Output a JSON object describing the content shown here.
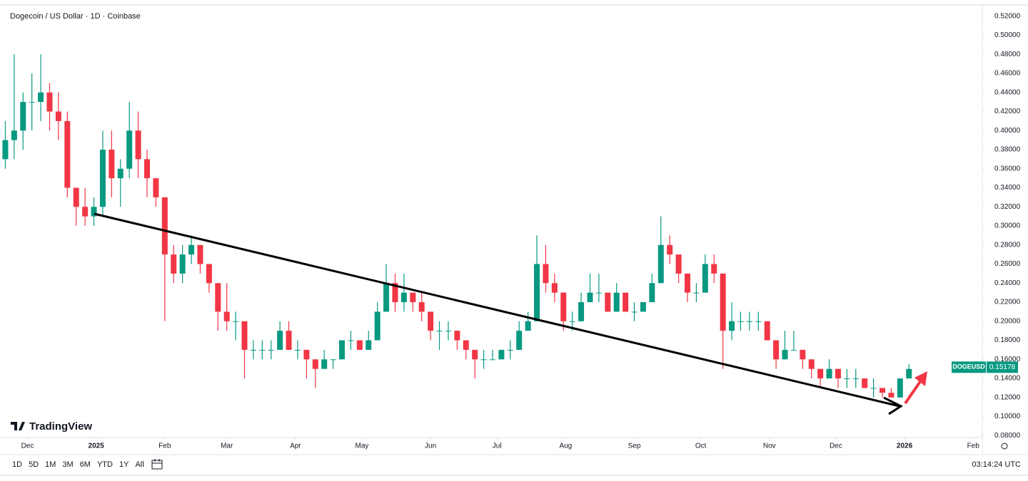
{
  "chart_data": {
    "type": "candlestick",
    "title": "Dogecoin / US Dollar · 1D · Coinbase",
    "brand": "TradingView",
    "symbol": "DOGEUSD",
    "last_price": {
      "value": 0.15178,
      "label": "0.15178"
    },
    "up_color": "#089981",
    "down_color": "#f23645",
    "ylim": [
      0.078,
      0.531
    ],
    "yticks": [
      {
        "value": 0.08,
        "label": "0.08000"
      },
      {
        "value": 0.1,
        "label": "0.10000"
      },
      {
        "value": 0.12,
        "label": "0.12000"
      },
      {
        "value": 0.14,
        "label": "0.14000"
      },
      {
        "value": 0.16,
        "label": "0.16000"
      },
      {
        "value": 0.18,
        "label": "0.18000"
      },
      {
        "value": 0.2,
        "label": "0.20000"
      },
      {
        "value": 0.22,
        "label": "0.22000"
      },
      {
        "value": 0.24,
        "label": "0.24000"
      },
      {
        "value": 0.26,
        "label": "0.26000"
      },
      {
        "value": 0.28,
        "label": "0.28000"
      },
      {
        "value": 0.3,
        "label": "0.30000"
      },
      {
        "value": 0.32,
        "label": "0.32000"
      },
      {
        "value": 0.34,
        "label": "0.34000"
      },
      {
        "value": 0.36,
        "label": "0.36000"
      },
      {
        "value": 0.38,
        "label": "0.38000"
      },
      {
        "value": 0.4,
        "label": "0.40000"
      },
      {
        "value": 0.42,
        "label": "0.42000"
      },
      {
        "value": 0.44,
        "label": "0.44000"
      },
      {
        "value": 0.46,
        "label": "0.46000"
      },
      {
        "value": 0.48,
        "label": "0.48000"
      },
      {
        "value": 0.5,
        "label": "0.50000"
      },
      {
        "value": 0.52,
        "label": "0.52000"
      }
    ],
    "xlim": [
      -0.6,
      110.2
    ],
    "xticks": [
      {
        "value": 2.5,
        "label": "Dec"
      },
      {
        "value": 10.25,
        "label": "2025"
      },
      {
        "value": 18,
        "label": "Feb"
      },
      {
        "value": 25,
        "label": "Mar"
      },
      {
        "value": 32.75,
        "label": "Apr"
      },
      {
        "value": 40.25,
        "label": "May"
      },
      {
        "value": 48,
        "label": "Jun"
      },
      {
        "value": 55.5,
        "label": "Jul"
      },
      {
        "value": 63.25,
        "label": "Aug"
      },
      {
        "value": 71,
        "label": "Sep"
      },
      {
        "value": 78.5,
        "label": "Oct"
      },
      {
        "value": 86.25,
        "label": "Nov"
      },
      {
        "value": 93.75,
        "label": "Dec"
      },
      {
        "value": 101.5,
        "label": "2026"
      },
      {
        "value": 109.25,
        "label": "Feb"
      }
    ],
    "grid": false,
    "ohlc": [
      [
        0.37,
        0.41,
        0.36,
        0.39
      ],
      [
        0.39,
        0.48,
        0.37,
        0.4
      ],
      [
        0.4,
        0.44,
        0.38,
        0.43
      ],
      [
        0.43,
        0.46,
        0.4,
        0.43
      ],
      [
        0.43,
        0.48,
        0.41,
        0.44
      ],
      [
        0.44,
        0.45,
        0.4,
        0.42
      ],
      [
        0.42,
        0.44,
        0.39,
        0.41
      ],
      [
        0.41,
        0.42,
        0.33,
        0.34
      ],
      [
        0.34,
        0.34,
        0.3,
        0.32
      ],
      [
        0.32,
        0.34,
        0.3,
        0.31
      ],
      [
        0.31,
        0.33,
        0.3,
        0.32
      ],
      [
        0.32,
        0.4,
        0.31,
        0.38
      ],
      [
        0.38,
        0.4,
        0.33,
        0.35
      ],
      [
        0.35,
        0.37,
        0.32,
        0.36
      ],
      [
        0.36,
        0.43,
        0.35,
        0.4
      ],
      [
        0.4,
        0.42,
        0.35,
        0.37
      ],
      [
        0.37,
        0.38,
        0.33,
        0.35
      ],
      [
        0.35,
        0.35,
        0.32,
        0.33
      ],
      [
        0.33,
        0.33,
        0.2,
        0.27
      ],
      [
        0.27,
        0.28,
        0.24,
        0.25
      ],
      [
        0.25,
        0.28,
        0.24,
        0.27
      ],
      [
        0.27,
        0.29,
        0.26,
        0.28
      ],
      [
        0.28,
        0.28,
        0.25,
        0.26
      ],
      [
        0.26,
        0.26,
        0.23,
        0.24
      ],
      [
        0.24,
        0.24,
        0.19,
        0.21
      ],
      [
        0.21,
        0.24,
        0.19,
        0.2
      ],
      [
        0.2,
        0.21,
        0.18,
        0.2
      ],
      [
        0.2,
        0.2,
        0.14,
        0.17
      ],
      [
        0.17,
        0.18,
        0.16,
        0.17
      ],
      [
        0.17,
        0.18,
        0.16,
        0.17
      ],
      [
        0.17,
        0.18,
        0.16,
        0.17
      ],
      [
        0.17,
        0.2,
        0.17,
        0.19
      ],
      [
        0.19,
        0.2,
        0.17,
        0.17
      ],
      [
        0.17,
        0.18,
        0.16,
        0.17
      ],
      [
        0.17,
        0.17,
        0.14,
        0.16
      ],
      [
        0.16,
        0.16,
        0.13,
        0.15
      ],
      [
        0.15,
        0.17,
        0.15,
        0.16
      ],
      [
        0.16,
        0.16,
        0.15,
        0.16
      ],
      [
        0.16,
        0.18,
        0.16,
        0.18
      ],
      [
        0.18,
        0.19,
        0.17,
        0.18
      ],
      [
        0.18,
        0.18,
        0.17,
        0.17
      ],
      [
        0.17,
        0.19,
        0.17,
        0.18
      ],
      [
        0.18,
        0.22,
        0.18,
        0.21
      ],
      [
        0.21,
        0.26,
        0.21,
        0.24
      ],
      [
        0.24,
        0.25,
        0.21,
        0.22
      ],
      [
        0.22,
        0.25,
        0.21,
        0.23
      ],
      [
        0.23,
        0.23,
        0.21,
        0.22
      ],
      [
        0.22,
        0.23,
        0.2,
        0.21
      ],
      [
        0.21,
        0.21,
        0.18,
        0.19
      ],
      [
        0.19,
        0.2,
        0.17,
        0.19
      ],
      [
        0.19,
        0.2,
        0.18,
        0.19
      ],
      [
        0.19,
        0.19,
        0.17,
        0.18
      ],
      [
        0.18,
        0.18,
        0.16,
        0.17
      ],
      [
        0.17,
        0.17,
        0.14,
        0.16
      ],
      [
        0.16,
        0.17,
        0.15,
        0.16
      ],
      [
        0.16,
        0.17,
        0.16,
        0.16
      ],
      [
        0.16,
        0.17,
        0.16,
        0.17
      ],
      [
        0.17,
        0.18,
        0.16,
        0.17
      ],
      [
        0.17,
        0.2,
        0.17,
        0.19
      ],
      [
        0.19,
        0.21,
        0.19,
        0.2
      ],
      [
        0.2,
        0.29,
        0.2,
        0.26
      ],
      [
        0.26,
        0.28,
        0.23,
        0.24
      ],
      [
        0.24,
        0.25,
        0.22,
        0.23
      ],
      [
        0.23,
        0.23,
        0.19,
        0.2
      ],
      [
        0.2,
        0.21,
        0.19,
        0.2
      ],
      [
        0.2,
        0.23,
        0.2,
        0.22
      ],
      [
        0.22,
        0.25,
        0.22,
        0.23
      ],
      [
        0.23,
        0.25,
        0.22,
        0.23
      ],
      [
        0.23,
        0.23,
        0.21,
        0.21
      ],
      [
        0.21,
        0.24,
        0.21,
        0.23
      ],
      [
        0.23,
        0.23,
        0.21,
        0.21
      ],
      [
        0.21,
        0.22,
        0.2,
        0.21
      ],
      [
        0.21,
        0.22,
        0.21,
        0.22
      ],
      [
        0.22,
        0.25,
        0.22,
        0.24
      ],
      [
        0.24,
        0.31,
        0.24,
        0.28
      ],
      [
        0.28,
        0.29,
        0.26,
        0.27
      ],
      [
        0.27,
        0.27,
        0.24,
        0.25
      ],
      [
        0.25,
        0.25,
        0.22,
        0.23
      ],
      [
        0.23,
        0.24,
        0.22,
        0.23
      ],
      [
        0.23,
        0.27,
        0.23,
        0.26
      ],
      [
        0.26,
        0.27,
        0.24,
        0.25
      ],
      [
        0.25,
        0.25,
        0.15,
        0.19
      ],
      [
        0.19,
        0.22,
        0.18,
        0.2
      ],
      [
        0.2,
        0.21,
        0.19,
        0.2
      ],
      [
        0.2,
        0.21,
        0.19,
        0.2
      ],
      [
        0.2,
        0.21,
        0.19,
        0.2
      ],
      [
        0.2,
        0.2,
        0.18,
        0.18
      ],
      [
        0.18,
        0.18,
        0.15,
        0.16
      ],
      [
        0.16,
        0.19,
        0.16,
        0.17
      ],
      [
        0.17,
        0.19,
        0.17,
        0.17
      ],
      [
        0.17,
        0.17,
        0.15,
        0.16
      ],
      [
        0.16,
        0.16,
        0.14,
        0.15
      ],
      [
        0.15,
        0.15,
        0.13,
        0.14
      ],
      [
        0.14,
        0.16,
        0.14,
        0.15
      ],
      [
        0.15,
        0.15,
        0.13,
        0.14
      ],
      [
        0.14,
        0.15,
        0.13,
        0.14
      ],
      [
        0.14,
        0.15,
        0.13,
        0.14
      ],
      [
        0.14,
        0.14,
        0.13,
        0.13
      ],
      [
        0.13,
        0.14,
        0.12,
        0.13
      ],
      [
        0.13,
        0.13,
        0.12,
        0.125
      ],
      [
        0.125,
        0.13,
        0.12,
        0.12
      ],
      [
        0.12,
        0.14,
        0.12,
        0.14
      ],
      [
        0.14,
        0.155,
        0.14,
        0.15
      ]
    ],
    "timeframes": [
      "1D",
      "5D",
      "1M",
      "3M",
      "6M",
      "YTD",
      "1Y",
      "All"
    ],
    "clock": "03:14:24 UTC"
  }
}
